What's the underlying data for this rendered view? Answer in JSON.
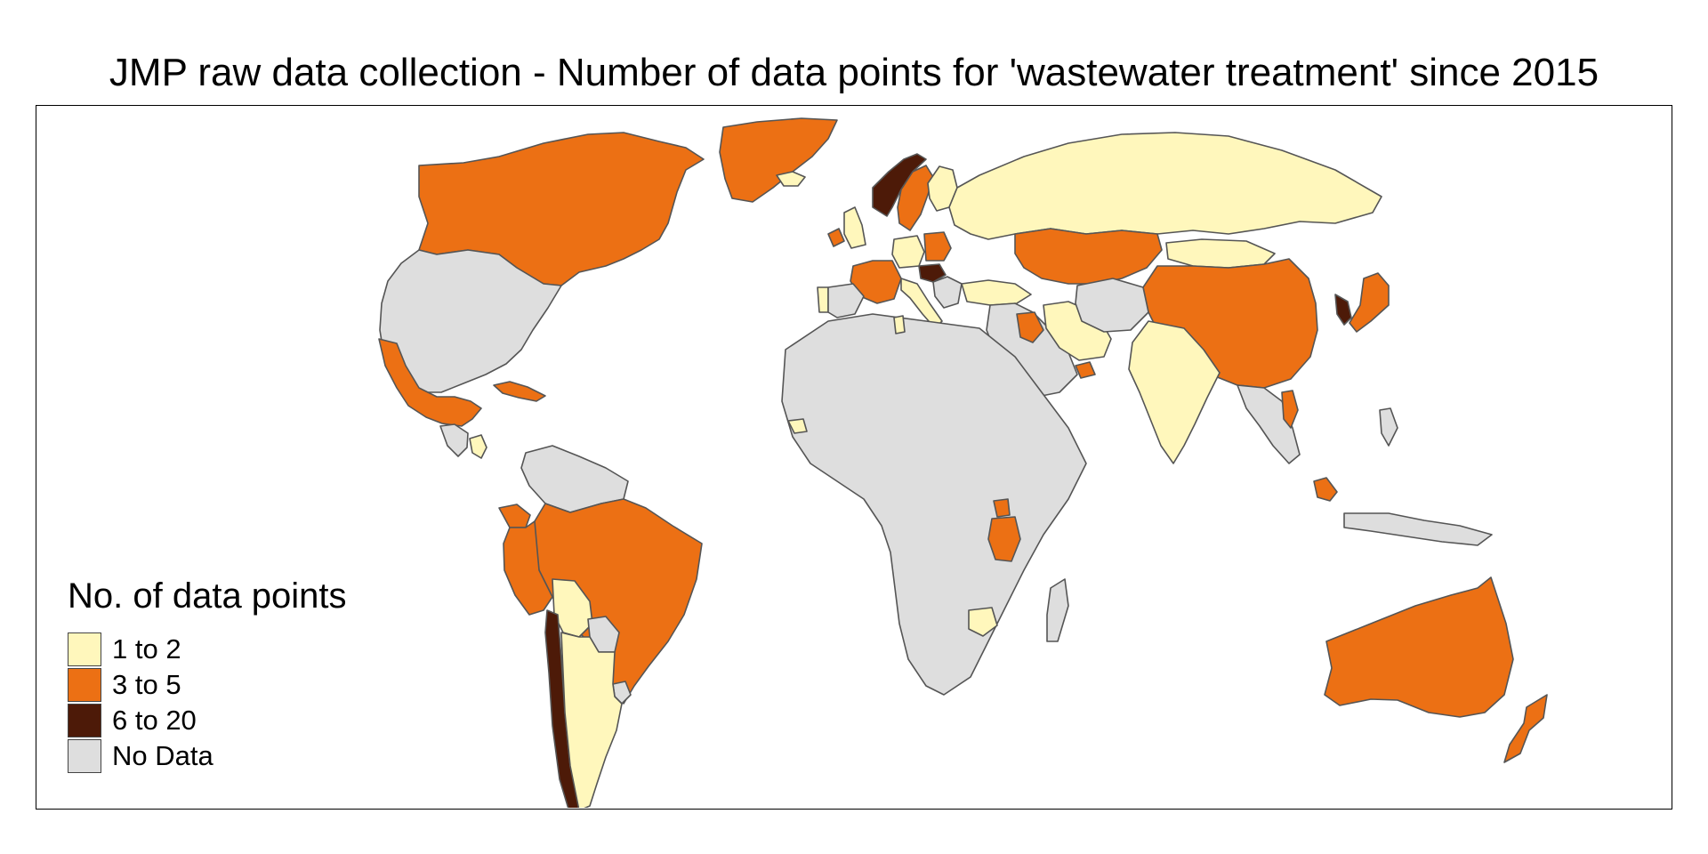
{
  "title": "JMP raw data collection - Number of data points for 'wastewater treatment' since 2015",
  "legend": {
    "title": "No. of data points",
    "items": [
      {
        "label": "1 to 2",
        "color": "#FFF7BC"
      },
      {
        "label": "3 to 5",
        "color": "#EC7014"
      },
      {
        "label": "6 to 20",
        "color": "#4D1A08"
      },
      {
        "label": "No Data",
        "color": "#DEDEDE"
      }
    ]
  },
  "map_data": {
    "type": "choropleth",
    "projection": "world",
    "border_color": "#555555",
    "regions": [
      {
        "name": "Canada",
        "class": "3 to 5"
      },
      {
        "name": "United States",
        "class": "No Data"
      },
      {
        "name": "Mexico",
        "class": "3 to 5"
      },
      {
        "name": "Greenland",
        "class": "3 to 5"
      },
      {
        "name": "Cuba",
        "class": "3 to 5"
      },
      {
        "name": "Nicaragua",
        "class": "1 to 2"
      },
      {
        "name": "Brazil",
        "class": "3 to 5"
      },
      {
        "name": "Peru",
        "class": "3 to 5"
      },
      {
        "name": "Ecuador",
        "class": "3 to 5"
      },
      {
        "name": "Bolivia",
        "class": "1 to 2"
      },
      {
        "name": "Chile",
        "class": "6 to 20"
      },
      {
        "name": "Argentina",
        "class": "1 to 2"
      },
      {
        "name": "Uruguay",
        "class": "No Data"
      },
      {
        "name": "Paraguay",
        "class": "No Data"
      },
      {
        "name": "Norway",
        "class": "6 to 20"
      },
      {
        "name": "Sweden",
        "class": "3 to 5"
      },
      {
        "name": "Finland",
        "class": "1 to 2"
      },
      {
        "name": "Iceland",
        "class": "1 to 2"
      },
      {
        "name": "Ireland",
        "class": "3 to 5"
      },
      {
        "name": "United Kingdom",
        "class": "1 to 2"
      },
      {
        "name": "France",
        "class": "3 to 5"
      },
      {
        "name": "Portugal",
        "class": "1 to 2"
      },
      {
        "name": "Germany",
        "class": "1 to 2"
      },
      {
        "name": "Poland",
        "class": "3 to 5"
      },
      {
        "name": "Hungary",
        "class": "6 to 20"
      },
      {
        "name": "Italy",
        "class": "1 to 2"
      },
      {
        "name": "Russia",
        "class": "1 to 2"
      },
      {
        "name": "Kazakhstan",
        "class": "3 to 5"
      },
      {
        "name": "Mongolia",
        "class": "1 to 2"
      },
      {
        "name": "China",
        "class": "3 to 5"
      },
      {
        "name": "Korea",
        "class": "6 to 20"
      },
      {
        "name": "Japan",
        "class": "3 to 5"
      },
      {
        "name": "Turkey",
        "class": "1 to 2"
      },
      {
        "name": "Iraq",
        "class": "3 to 5"
      },
      {
        "name": "Iran",
        "class": "1 to 2"
      },
      {
        "name": "United Arab Emirates",
        "class": "3 to 5"
      },
      {
        "name": "India",
        "class": "1 to 2"
      },
      {
        "name": "Vietnam",
        "class": "3 to 5"
      },
      {
        "name": "Malaysia",
        "class": "3 to 5"
      },
      {
        "name": "Uganda",
        "class": "3 to 5"
      },
      {
        "name": "Tanzania",
        "class": "3 to 5"
      },
      {
        "name": "Zimbabwe",
        "class": "1 to 2"
      },
      {
        "name": "Senegal",
        "class": "1 to 2"
      },
      {
        "name": "Tunisia",
        "class": "1 to 2"
      },
      {
        "name": "Australia",
        "class": "3 to 5"
      },
      {
        "name": "New Zealand",
        "class": "3 to 5"
      },
      {
        "name": "Africa (other)",
        "class": "No Data"
      },
      {
        "name": "Middle East (other)",
        "class": "No Data"
      },
      {
        "name": "Southeast Asia (other)",
        "class": "No Data"
      },
      {
        "name": "South America (other)",
        "class": "No Data"
      }
    ]
  }
}
